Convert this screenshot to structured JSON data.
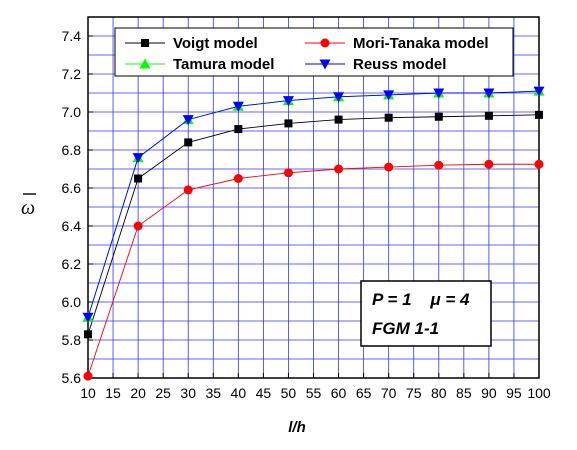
{
  "chart_data": {
    "type": "line",
    "xlabel": "l/h",
    "ylabel": "ω",
    "xlim": [
      10,
      100
    ],
    "ylim": [
      5.6,
      7.5
    ],
    "x_ticks": [
      10,
      15,
      20,
      25,
      30,
      35,
      40,
      45,
      50,
      55,
      60,
      65,
      70,
      75,
      80,
      85,
      90,
      95,
      100
    ],
    "y_ticks": [
      5.6,
      5.8,
      6.0,
      6.2,
      6.4,
      6.6,
      6.8,
      7.0,
      7.2,
      7.4
    ],
    "x_tick_labels": [
      "10",
      "15",
      "20",
      "25",
      "30",
      "35",
      "40",
      "45",
      "50",
      "55",
      "60",
      "65",
      "70",
      "75",
      "80",
      "85",
      "90",
      "95",
      "100"
    ],
    "y_tick_labels": [
      "5.6",
      "5.8",
      "6.0",
      "6.2",
      "6.4",
      "6.6",
      "6.8",
      "7.0",
      "7.2",
      "7.4"
    ],
    "grid": true,
    "legend_position": "top",
    "x": [
      10,
      20,
      30,
      40,
      50,
      60,
      70,
      80,
      90,
      100
    ],
    "series": [
      {
        "name": "Voigt model",
        "color": "#000000",
        "marker": "square",
        "values": [
          5.83,
          6.65,
          6.84,
          6.91,
          6.94,
          6.96,
          6.97,
          6.975,
          6.98,
          6.985
        ]
      },
      {
        "name": "Mori-Tanaka model",
        "color": "#ff0000",
        "marker": "circle",
        "values": [
          5.61,
          6.4,
          6.59,
          6.65,
          6.68,
          6.7,
          6.71,
          6.72,
          6.725,
          6.725
        ]
      },
      {
        "name": "Tamura model",
        "color": "#00ff00",
        "marker": "triangle-up",
        "values": [
          5.92,
          6.76,
          6.96,
          7.03,
          7.06,
          7.08,
          7.09,
          7.1,
          7.1,
          7.11
        ]
      },
      {
        "name": "Reuss model",
        "color": "#0000ff",
        "marker": "triangle-down",
        "values": [
          5.92,
          6.76,
          6.96,
          7.03,
          7.06,
          7.08,
          7.09,
          7.1,
          7.1,
          7.11
        ]
      }
    ],
    "annotations": [
      "P = 1    μ = 4",
      "FGM 1-1"
    ],
    "colors": {
      "grid": "#3333ff",
      "axis": "#000000"
    }
  }
}
